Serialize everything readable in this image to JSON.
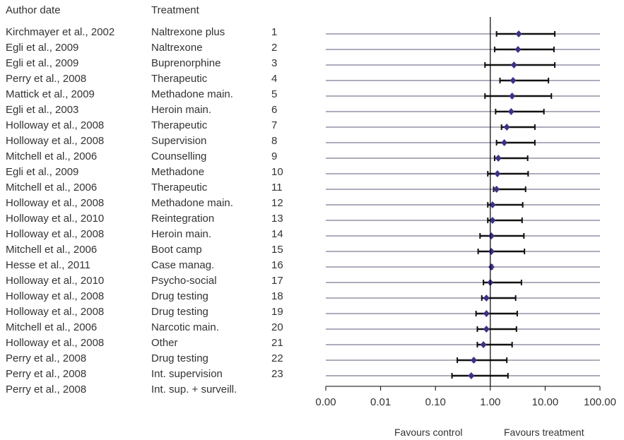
{
  "headers": {
    "author": "Author date",
    "treatment": "Treatment"
  },
  "favours": {
    "control": "Favours control",
    "treatment": "Favours treatment"
  },
  "chart_data": {
    "type": "forest",
    "title": "",
    "x_scale": "log",
    "x_ticks": [
      0.001,
      0.01,
      0.1,
      1,
      10,
      100
    ],
    "x_tick_labels": [
      "0.00",
      "0.01",
      "0.10",
      "1.00",
      "10.00",
      "100.00"
    ],
    "reference_line": 1,
    "studies": [
      {
        "author": "Kirchmayer et al., 2002",
        "treatment": "Naltrexone plus",
        "num": "1",
        "est": 3.3,
        "lo": 1.3,
        "hi": 15
      },
      {
        "author": "Egli et al., 2009",
        "treatment": "Naltrexone",
        "num": "2",
        "est": 3.2,
        "lo": 1.2,
        "hi": 14.5
      },
      {
        "author": "Egli et al., 2009",
        "treatment": "Buprenorphine",
        "num": "3",
        "est": 2.7,
        "lo": 0.8,
        "hi": 15
      },
      {
        "author": "Perry et al., 2008",
        "treatment": "Therapeutic",
        "num": "4",
        "est": 2.6,
        "lo": 1.5,
        "hi": 11.5
      },
      {
        "author": "Mattick et al., 2009",
        "treatment": "Methadone main.",
        "num": "5",
        "est": 2.5,
        "lo": 0.8,
        "hi": 13
      },
      {
        "author": "Egli et al., 2003",
        "treatment": "Heroin main.",
        "num": "6",
        "est": 2.4,
        "lo": 1.25,
        "hi": 9.5
      },
      {
        "author": "Holloway et al., 2008",
        "treatment": "Therapeutic",
        "num": "7",
        "est": 2.0,
        "lo": 1.6,
        "hi": 6.5
      },
      {
        "author": "Holloway et al., 2008",
        "treatment": "Supervision",
        "num": "8",
        "est": 1.8,
        "lo": 1.3,
        "hi": 6.5
      },
      {
        "author": "Mitchell et al., 2006",
        "treatment": "Counselling",
        "num": "9",
        "est": 1.4,
        "lo": 1.2,
        "hi": 4.8
      },
      {
        "author": "Egli et al., 2009",
        "treatment": "Methadone",
        "num": "10",
        "est": 1.35,
        "lo": 0.9,
        "hi": 4.9
      },
      {
        "author": "Mitchell et al., 2006",
        "treatment": "Therapeutic",
        "num": "11",
        "est": 1.3,
        "lo": 1.15,
        "hi": 4.4
      },
      {
        "author": "Holloway et al., 2008",
        "treatment": "Methadone main.",
        "num": "12",
        "est": 1.1,
        "lo": 0.9,
        "hi": 3.9
      },
      {
        "author": "Holloway et al., 2010",
        "treatment": "Reintegration",
        "num": "13",
        "est": 1.1,
        "lo": 0.9,
        "hi": 3.8
      },
      {
        "author": "Holloway et al., 2008",
        "treatment": "Heroin main.",
        "num": "14",
        "est": 1.05,
        "lo": 0.65,
        "hi": 4.1
      },
      {
        "author": "Mitchell et al., 2006",
        "treatment": "Boot camp",
        "num": "15",
        "est": 1.05,
        "lo": 0.6,
        "hi": 4.2
      },
      {
        "author": "Hesse et al., 2011",
        "treatment": "Case manag.",
        "num": "16",
        "est": 1.05,
        "lo": 1.02,
        "hi": 1.08
      },
      {
        "author": "Holloway et al., 2010",
        "treatment": "Psycho-social",
        "num": "17",
        "est": 1.0,
        "lo": 0.75,
        "hi": 3.7
      },
      {
        "author": "Holloway et al., 2008",
        "treatment": "Drug testing",
        "num": "18",
        "est": 0.85,
        "lo": 0.7,
        "hi": 2.9
      },
      {
        "author": "Holloway et al., 2008",
        "treatment": "Drug testing",
        "num": "19",
        "est": 0.85,
        "lo": 0.55,
        "hi": 3.1
      },
      {
        "author": "Mitchell et al., 2006",
        "treatment": "Narcotic main.",
        "num": "20",
        "est": 0.85,
        "lo": 0.58,
        "hi": 3.0
      },
      {
        "author": "Holloway et al., 2008",
        "treatment": "Other",
        "num": "21",
        "est": 0.75,
        "lo": 0.58,
        "hi": 2.5
      },
      {
        "author": "Perry et al., 2008",
        "treatment": "Drug testing",
        "num": "22",
        "est": 0.5,
        "lo": 0.25,
        "hi": 2.0
      },
      {
        "author": "Perry et al., 2008",
        "treatment": "Int. supervision",
        "num": "23",
        "est": 0.45,
        "lo": 0.2,
        "hi": 2.1
      },
      {
        "author": "Perry et al., 2008",
        "treatment": "Int. sup. + surveill.",
        "num": "",
        "est": null,
        "lo": null,
        "hi": null
      }
    ]
  },
  "colors": {
    "marker": "#3a3385",
    "grid": "#5e5a78",
    "ci": "#111111",
    "ref": "#000000",
    "text": "#333333"
  }
}
